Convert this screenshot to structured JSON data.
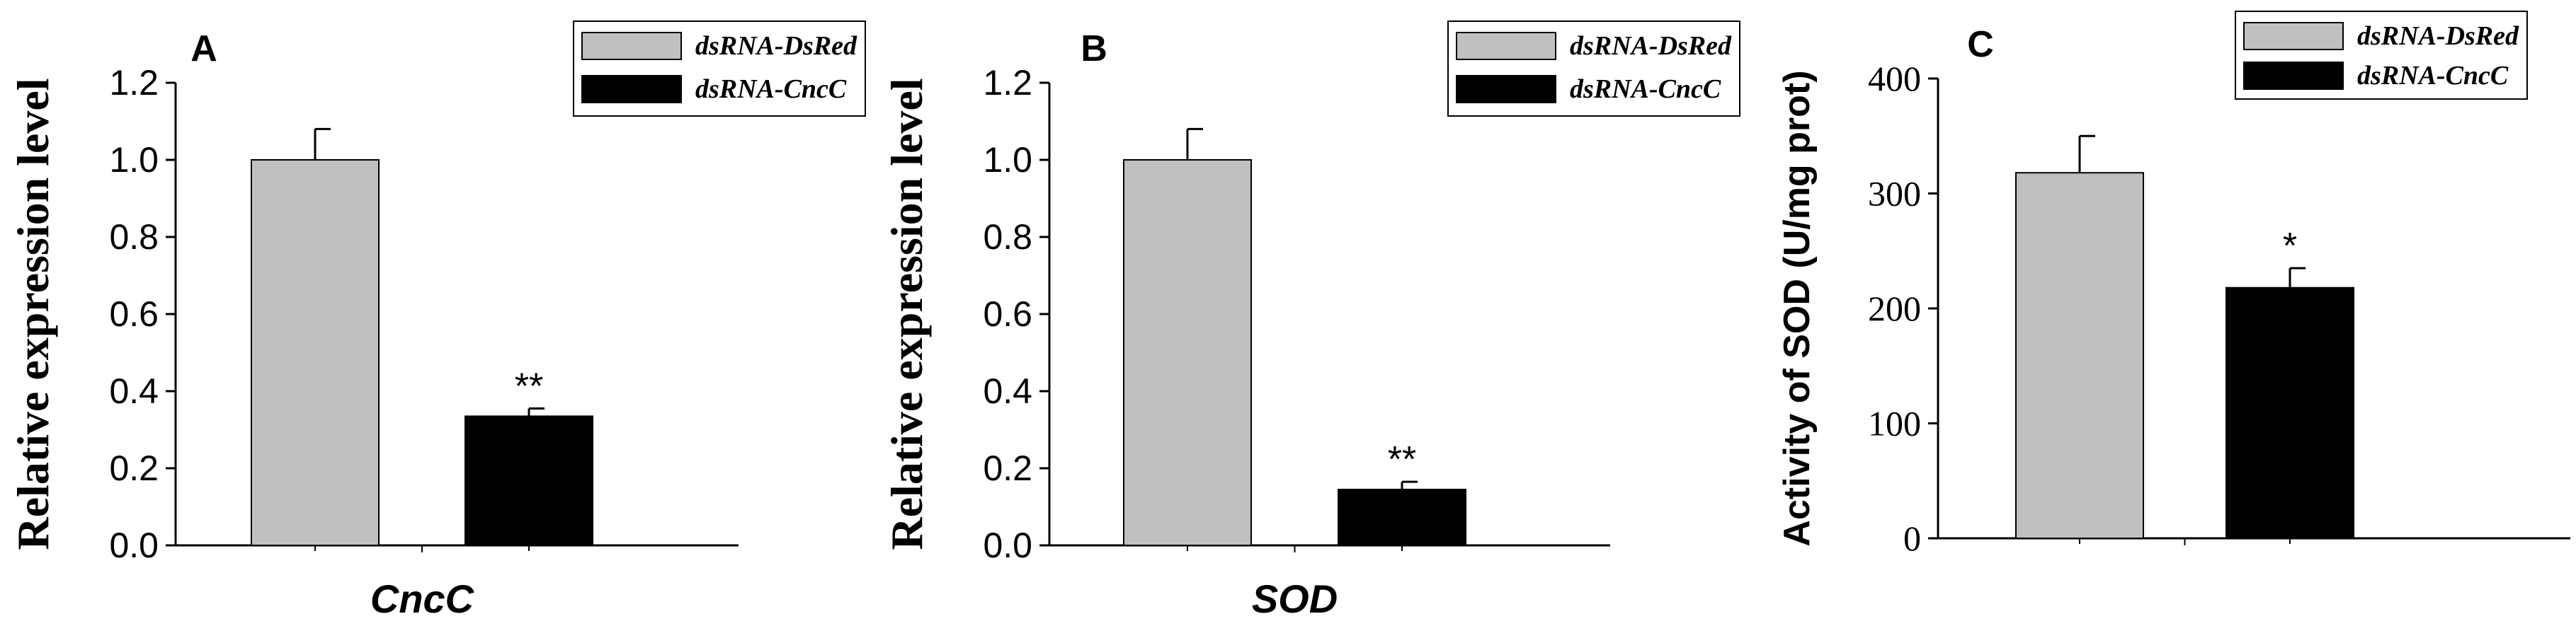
{
  "colors": {
    "series_0": "#c0c0c0",
    "series_1": "#000000"
  },
  "chart_data": [
    {
      "type": "bar",
      "panel": "A",
      "categories": [
        "CncC"
      ],
      "series": [
        {
          "name": "dsRNA-DsRed",
          "values": [
            1.0
          ],
          "errors": [
            0.08
          ]
        },
        {
          "name": "dsRNA-CncC",
          "values": [
            0.335
          ],
          "errors": [
            0.02
          ]
        }
      ],
      "annotations": [
        "",
        "**"
      ],
      "xlabel": "CncC",
      "ylabel": "Relative expression level",
      "ylim": [
        0,
        1.2
      ],
      "yticks": [
        "0.0",
        "0.2",
        "0.4",
        "0.6",
        "0.8",
        "1.0",
        "1.2"
      ],
      "legend": "top-right"
    },
    {
      "type": "bar",
      "panel": "B",
      "categories": [
        "SOD"
      ],
      "series": [
        {
          "name": "dsRNA-DsRed",
          "values": [
            1.0
          ],
          "errors": [
            0.08
          ]
        },
        {
          "name": "dsRNA-CncC",
          "values": [
            0.145
          ],
          "errors": [
            0.02
          ]
        }
      ],
      "annotations": [
        "",
        "**"
      ],
      "xlabel": "SOD",
      "ylabel": "Relative expression level",
      "ylim": [
        0,
        1.2
      ],
      "yticks": [
        "0.0",
        "0.2",
        "0.4",
        "0.6",
        "0.8",
        "1.0",
        "1.2"
      ],
      "legend": "top-right"
    },
    {
      "type": "bar",
      "panel": "C",
      "categories": [
        ""
      ],
      "series": [
        {
          "name": "dsRNA-DsRed",
          "values": [
            318
          ],
          "errors": [
            32
          ]
        },
        {
          "name": "dsRNA-CncC",
          "values": [
            218
          ],
          "errors": [
            17
          ]
        }
      ],
      "annotations": [
        "",
        "*"
      ],
      "xlabel": "",
      "ylabel": "Activity of SOD (U/mg prot)",
      "ylim": [
        0,
        400
      ],
      "yticks": [
        "0",
        "100",
        "200",
        "300",
        "400"
      ],
      "legend": "top"
    }
  ]
}
